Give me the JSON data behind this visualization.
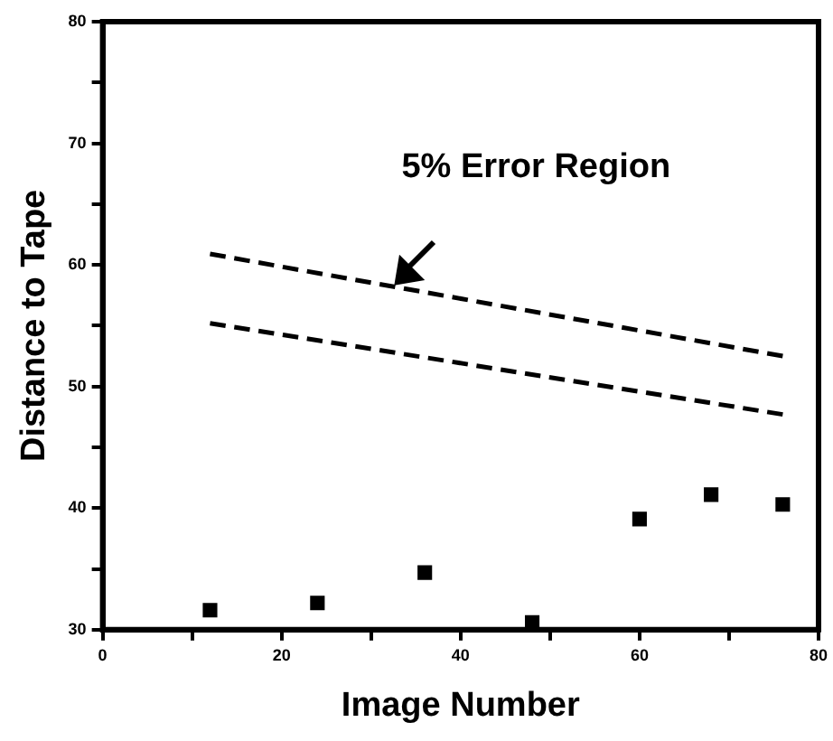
{
  "chart_data": {
    "type": "scatter",
    "xlabel": "Image Number",
    "ylabel": "Distance to Tape",
    "xlim": [
      0,
      80
    ],
    "xticks": [
      0,
      {
        "value": 10,
        "label": null
      },
      20,
      {
        "value": 30,
        "label": null
      },
      40,
      {
        "value": 50,
        "label": null
      },
      60,
      {
        "value": 70,
        "label": null
      },
      80
    ],
    "ylim": [
      30,
      80
    ],
    "yticks": [
      30,
      {
        "value": 35,
        "label": null
      },
      40,
      {
        "value": 45,
        "label": null
      },
      50,
      {
        "value": 55,
        "label": null
      },
      60,
      {
        "value": 65,
        "label": null
      },
      70,
      {
        "value": 75,
        "label": null
      },
      80
    ],
    "grid": false,
    "legend": false,
    "series": [
      {
        "color": "#000000",
        "marker": "square",
        "x": [
          12,
          24,
          36,
          48,
          60,
          68,
          76
        ],
        "values": [
          31.6,
          32.2,
          34.7,
          30.6,
          39.1,
          41.1,
          40.3
        ]
      },
      {
        "type": "line",
        "color": "#000000",
        "line_style": "dashed",
        "marker": "none",
        "x": [
          12,
          76
        ],
        "values": [
          60.9,
          52.5
        ]
      },
      {
        "type": "line",
        "color": "#000000",
        "line_style": "dashed",
        "marker": "none",
        "x": [
          12,
          76
        ],
        "values": [
          55.2,
          47.7
        ]
      }
    ],
    "annotations": [
      {
        "text": "5% Error Region",
        "x": 33,
        "y": 58.6
      }
    ]
  }
}
